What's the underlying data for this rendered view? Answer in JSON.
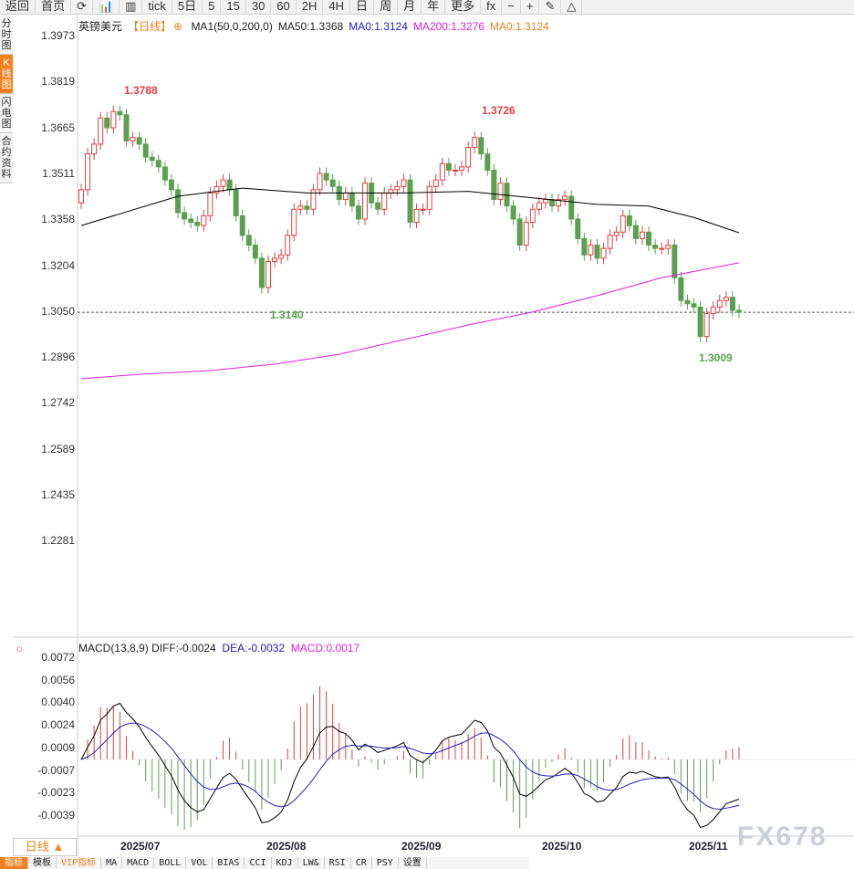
{
  "toolbar": {
    "items": [
      "返回",
      "首页",
      "⟳",
      "📊",
      "▥",
      "tick",
      "5日",
      "5",
      "15",
      "30",
      "60",
      "2H",
      "4H",
      "日",
      "周",
      "月",
      "年",
      "更多",
      "fx",
      "−",
      "+",
      "✎",
      "△"
    ]
  },
  "sidebar": {
    "tabs": [
      "分时图",
      "K线图",
      "闪电图",
      "合约资料"
    ],
    "active": 1
  },
  "legend": {
    "symbol": "英镑美元",
    "period": "【日线】",
    "ma_config": "MA1(50,0,200,0)",
    "ma50": "MA50:1.3368",
    "ma0a": "MA0:1.3124",
    "ma200": "MA200:1.3276",
    "ma0b": "MA0:1.3124"
  },
  "colors": {
    "up": "#e04040",
    "down": "#5aa050",
    "ma50": "#000000",
    "ma200": "#e020e0",
    "ma0a": "#2020c0",
    "ma0b": "#f08020",
    "diff": "#000000",
    "dea": "#2020c0"
  },
  "y_axis": [
    "1.3973",
    "1.3819",
    "1.3665",
    "1.3511",
    "1.3358",
    "1.3204",
    "1.3050",
    "1.2896",
    "1.2742",
    "1.2589",
    "1.2435",
    "1.2281"
  ],
  "annotations": {
    "high1": "1.3788",
    "high2": "1.3726",
    "low1": "1.3140",
    "low2": "1.3009"
  },
  "macd": {
    "label": "MACD(13,8,9)",
    "diff": "DIFF:-0.0024",
    "dea": "DEA:-0.0032",
    "macd": "MACD:0.0017",
    "y_axis": [
      "0.0072",
      "0.0056",
      "0.0040",
      "0.0024",
      "0.0009",
      "-0.0007",
      "-0.0023",
      "-0.0039"
    ]
  },
  "x_axis": [
    "2025/07",
    "2025/08",
    "2025/09",
    "2025/10",
    "2025/11"
  ],
  "period_selector": "日线 ▲",
  "bottom_tabs": [
    "指标",
    "模板",
    "VIP指标",
    "MA",
    "MACD",
    "BOLL",
    "VOL",
    "BIAS",
    "CCI",
    "KDJ",
    "LW&",
    "RSI",
    "CR",
    "PSY",
    "设置"
  ],
  "watermark": "FX678",
  "chart_data": {
    "type": "candlestick",
    "current_price": 1.3124,
    "closes": [
      1.35,
      1.361,
      1.364,
      1.372,
      1.369,
      1.374,
      1.373,
      1.365,
      1.366,
      1.364,
      1.36,
      1.359,
      1.357,
      1.353,
      1.35,
      1.343,
      1.341,
      1.34,
      1.339,
      1.342,
      1.349,
      1.351,
      1.353,
      1.35,
      1.342,
      1.336,
      1.333,
      1.329,
      1.32,
      1.328,
      1.329,
      1.33,
      1.336,
      1.344,
      1.345,
      1.344,
      1.35,
      1.355,
      1.353,
      1.351,
      1.347,
      1.349,
      1.345,
      1.341,
      1.352,
      1.346,
      1.344,
      1.349,
      1.35,
      1.351,
      1.353,
      1.34,
      1.344,
      1.344,
      1.351,
      1.353,
      1.358,
      1.356,
      1.356,
      1.357,
      1.363,
      1.366,
      1.361,
      1.356,
      1.347,
      1.352,
      1.345,
      1.341,
      1.333,
      1.34,
      1.344,
      1.346,
      1.347,
      1.345,
      1.347,
      1.348,
      1.341,
      1.335,
      1.33,
      1.333,
      1.329,
      1.332,
      1.336,
      1.337,
      1.342,
      1.339,
      1.335,
      1.337,
      1.333,
      1.332,
      1.332,
      1.333,
      1.323,
      1.316,
      1.315,
      1.314,
      1.305,
      1.312,
      1.314,
      1.316,
      1.317,
      1.313,
      1.3124
    ],
    "ma50": [
      [
        0,
        1.339
      ],
      [
        15,
        1.348
      ],
      [
        25,
        1.3505
      ],
      [
        35,
        1.349
      ],
      [
        50,
        1.349
      ],
      [
        60,
        1.3495
      ],
      [
        70,
        1.3475
      ],
      [
        80,
        1.3455
      ],
      [
        88,
        1.345
      ],
      [
        95,
        1.3415
      ],
      [
        102,
        1.3368
      ]
    ],
    "ma200": [
      [
        0,
        1.292
      ],
      [
        10,
        1.2935
      ],
      [
        20,
        1.2945
      ],
      [
        30,
        1.2965
      ],
      [
        40,
        1.2995
      ],
      [
        50,
        1.304
      ],
      [
        60,
        1.3085
      ],
      [
        70,
        1.3125
      ],
      [
        80,
        1.3175
      ],
      [
        90,
        1.323
      ],
      [
        102,
        1.3276
      ]
    ]
  }
}
